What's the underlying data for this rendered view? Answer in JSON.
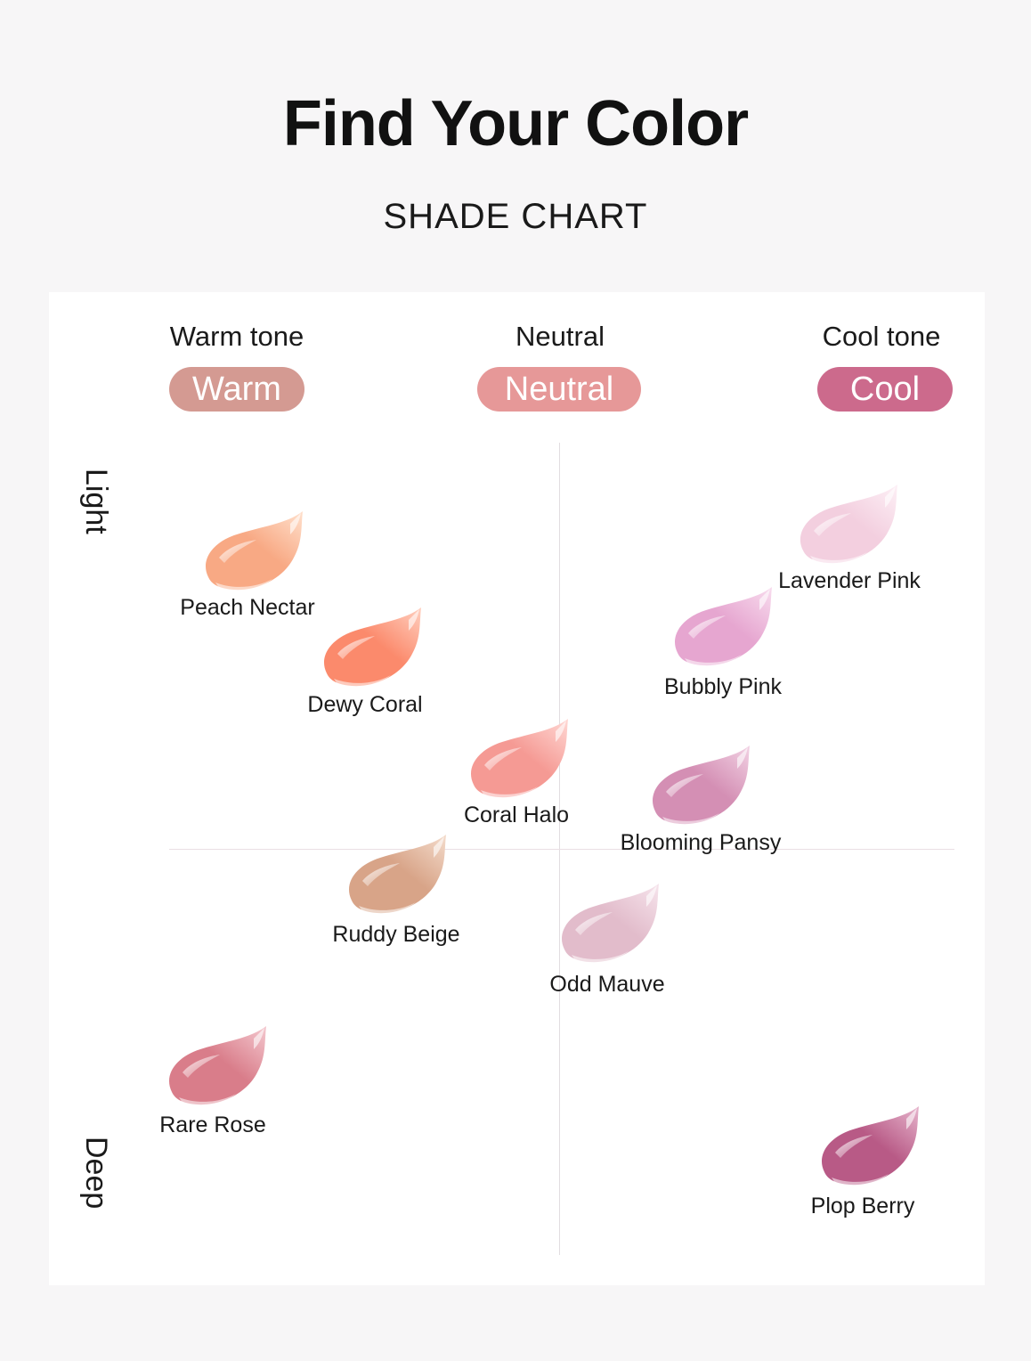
{
  "header": {
    "title": "Find Your Color",
    "subtitle": "SHADE CHART"
  },
  "tones": [
    {
      "label": "Warm tone",
      "pill": "Warm",
      "color": "#d49a92"
    },
    {
      "label": "Neutral",
      "pill": "Neutral",
      "color": "#e69898"
    },
    {
      "label": "Cool tone",
      "pill": "Cool",
      "color": "#cc6a8c"
    }
  ],
  "axis": {
    "top": "Light",
    "bottom": "Deep"
  },
  "shades": [
    {
      "name": "Peach Nectar",
      "color": "#f8a984",
      "light": "#ffe0cc"
    },
    {
      "name": "Dewy Coral",
      "color": "#fb8a6c",
      "light": "#ffd0c0"
    },
    {
      "name": "Coral Halo",
      "color": "#f59a94",
      "light": "#ffd8d4"
    },
    {
      "name": "Ruddy Beige",
      "color": "#d8a488",
      "light": "#f4dccc"
    },
    {
      "name": "Rare Rose",
      "color": "#d97d8a",
      "light": "#f4c8cf"
    },
    {
      "name": "Lavender Pink",
      "color": "#f3cfdf",
      "light": "#fdf0f6"
    },
    {
      "name": "Bubbly Pink",
      "color": "#e6a6d0",
      "light": "#f8dcee"
    },
    {
      "name": "Blooming Pansy",
      "color": "#d48fb4",
      "light": "#f2d2e4"
    },
    {
      "name": "Odd Mauve",
      "color": "#e2bccb",
      "light": "#f6e4ec"
    },
    {
      "name": "Plop Berry",
      "color": "#b85a86",
      "light": "#e6b4cc"
    }
  ]
}
